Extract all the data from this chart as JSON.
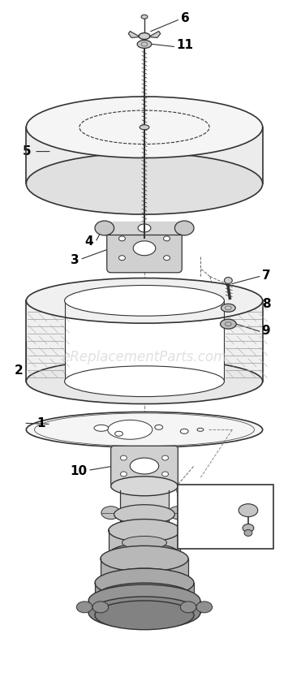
{
  "background_color": "#ffffff",
  "watermark": "eReplacementParts.com",
  "line_color": "#333333",
  "fill_light": "#f0f0f0",
  "fill_mid": "#d8d8d8",
  "fill_dark": "#b0b0b0",
  "label_fontsize": 10,
  "watermark_color": "#cccccc"
}
